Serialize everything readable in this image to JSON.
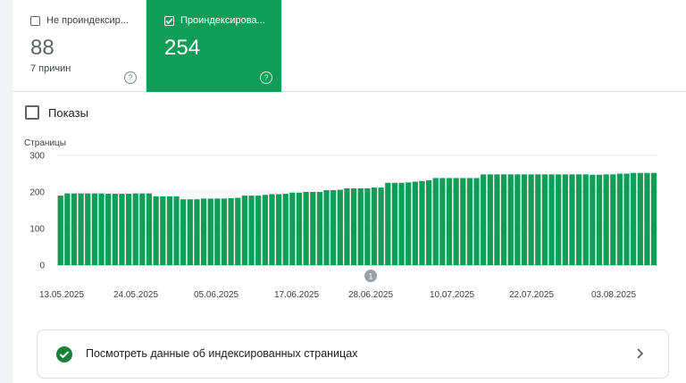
{
  "tiles": [
    {
      "label": "Не проиндексир...",
      "value": "88",
      "sub": "7 причин",
      "checked": false
    },
    {
      "label": "Проиндексирова...",
      "value": "254",
      "checked": true
    }
  ],
  "help_icon": "?",
  "shows_label": "Показы",
  "chart_data": {
    "type": "bar",
    "ylabel": "Страницы",
    "yticks": [
      0,
      100,
      200,
      300
    ],
    "ylim": [
      0,
      300
    ],
    "xtick_labels": [
      "13.05.2025",
      "24.05.2025",
      "05.06.2025",
      "17.06.2025",
      "28.06.2025",
      "10.07.2025",
      "22.07.2025",
      "03.08.2025"
    ],
    "annotation_marker": "1",
    "values": [
      190,
      196,
      196,
      196,
      196,
      196,
      196,
      195,
      195,
      195,
      195,
      196,
      196,
      196,
      188,
      188,
      188,
      188,
      180,
      180,
      180,
      182,
      182,
      182,
      182,
      183,
      184,
      190,
      190,
      190,
      192,
      194,
      194,
      195,
      198,
      198,
      200,
      200,
      200,
      205,
      205,
      206,
      210,
      210,
      210,
      210,
      212,
      212,
      225,
      225,
      225,
      226,
      228,
      230,
      232,
      238,
      238,
      238,
      238,
      238,
      238,
      238,
      248,
      248,
      248,
      248,
      248,
      248,
      248,
      248,
      248,
      248,
      248,
      248,
      248,
      248,
      248,
      248,
      247,
      247,
      248,
      248,
      250,
      250,
      252,
      252,
      252,
      252
    ]
  },
  "link_card": {
    "text": "Посмотреть данные об индексированных страницах"
  }
}
